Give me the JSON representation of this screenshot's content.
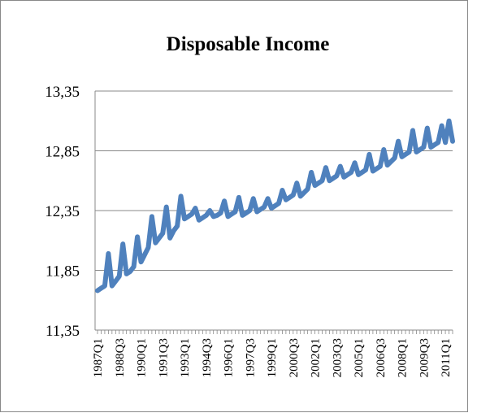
{
  "chart_data": {
    "type": "line",
    "title": "Disposable Income",
    "categories": [
      "1987Q1",
      null,
      null,
      null,
      null,
      null,
      "1988Q3",
      null,
      null,
      null,
      null,
      null,
      "1990Q1",
      null,
      null,
      null,
      null,
      null,
      "1991Q3",
      null,
      null,
      null,
      null,
      null,
      "1993Q1",
      null,
      null,
      null,
      null,
      null,
      "1994Q3",
      null,
      null,
      null,
      null,
      null,
      "1996Q1",
      null,
      null,
      null,
      null,
      null,
      "1997Q3",
      null,
      null,
      null,
      null,
      null,
      "1999Q1",
      null,
      null,
      null,
      null,
      null,
      "2000Q3",
      null,
      null,
      null,
      null,
      null,
      "2002Q1",
      null,
      null,
      null,
      null,
      null,
      "2003Q3",
      null,
      null,
      null,
      null,
      null,
      "2005Q1",
      null,
      null,
      null,
      null,
      null,
      "2006Q3",
      null,
      null,
      null,
      null,
      null,
      "2008Q1",
      null,
      null,
      null,
      null,
      null,
      "2009Q3",
      null,
      null,
      null,
      null,
      null,
      "2011Q1",
      null,
      null
    ],
    "values": [
      11.68,
      11.7,
      11.72,
      11.99,
      11.72,
      11.76,
      11.8,
      12.07,
      11.82,
      11.84,
      11.88,
      12.13,
      11.92,
      11.98,
      12.04,
      12.3,
      12.08,
      12.12,
      12.16,
      12.38,
      12.12,
      12.18,
      12.22,
      12.47,
      12.28,
      12.3,
      12.32,
      12.37,
      12.27,
      12.29,
      12.31,
      12.35,
      12.3,
      12.31,
      12.33,
      12.43,
      12.3,
      12.32,
      12.34,
      12.46,
      12.31,
      12.33,
      12.35,
      12.45,
      12.34,
      12.36,
      12.38,
      12.45,
      12.37,
      12.39,
      12.41,
      12.52,
      12.44,
      12.46,
      12.48,
      12.58,
      12.47,
      12.5,
      12.53,
      12.67,
      12.56,
      12.58,
      12.6,
      12.71,
      12.6,
      12.62,
      12.64,
      12.72,
      12.63,
      12.65,
      12.67,
      12.75,
      12.65,
      12.67,
      12.69,
      12.82,
      12.68,
      12.7,
      12.72,
      12.86,
      12.73,
      12.76,
      12.79,
      12.93,
      12.8,
      12.82,
      12.84,
      13.02,
      12.84,
      12.86,
      12.88,
      13.04,
      12.88,
      12.9,
      12.92,
      13.06,
      12.92,
      13.1,
      12.93
    ],
    "color": "#4f81bd",
    "ylim": [
      11.35,
      13.35
    ],
    "yticks": [
      {
        "value": 11.35,
        "label": "11,35"
      },
      {
        "value": 11.85,
        "label": "11,85"
      },
      {
        "value": 12.35,
        "label": "12,35"
      },
      {
        "value": 12.85,
        "label": "12,85"
      },
      {
        "value": 13.35,
        "label": "13,35"
      }
    ],
    "grid": true
  }
}
